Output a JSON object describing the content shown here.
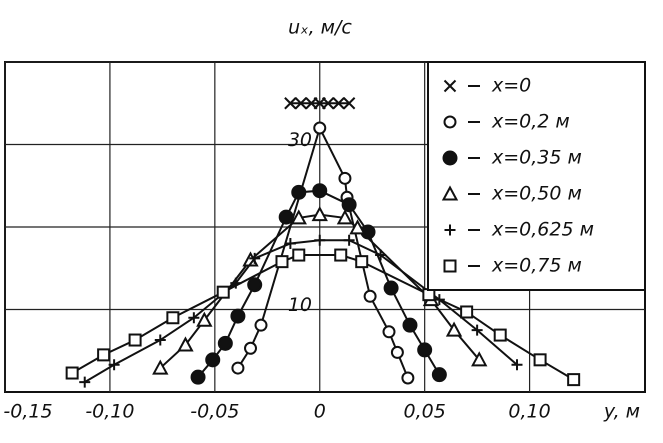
{
  "chart_data": {
    "type": "line",
    "y_label": "uₓ, м/с",
    "x_label": "y, м",
    "xlim": [
      -0.15,
      0.155
    ],
    "ylim": [
      0,
      40
    ],
    "xticks": [
      {
        "value": -0.15,
        "label": "-0,15"
      },
      {
        "value": -0.1,
        "label": "-0,10"
      },
      {
        "value": -0.05,
        "label": "-0,05"
      },
      0,
      {
        "value": 0.05,
        "label": "0,05"
      },
      {
        "value": 0.1,
        "label": "0,10"
      }
    ],
    "yticks": [
      10,
      30
    ],
    "ygrid": [
      10,
      20,
      30,
      40
    ],
    "grid": true,
    "legend": "upper right",
    "series": [
      {
        "name": "x=0",
        "marker": "x",
        "color": "#111111",
        "x": [
          -0.014,
          -0.009,
          -0.004,
          0,
          0.004,
          0.009,
          0.014
        ],
        "values": [
          35,
          35,
          35,
          35,
          35,
          35,
          35
        ]
      },
      {
        "name": "x=0,2 м",
        "marker": "circle",
        "color": "#111111",
        "x": [
          -0.039,
          -0.033,
          -0.028,
          0,
          0.012,
          0.013,
          0.024,
          0.033,
          0.037,
          0.042
        ],
        "values": [
          2.9,
          5.3,
          8.1,
          32,
          25.9,
          23.6,
          11.6,
          7.3,
          4.8,
          1.7
        ]
      },
      {
        "name": "x=0,35 м",
        "marker": "dot",
        "color": "#111111",
        "x": [
          -0.058,
          -0.051,
          -0.045,
          -0.039,
          -0.031,
          -0.016,
          -0.01,
          0,
          0.014,
          0.023,
          0.034,
          0.043,
          0.05,
          0.057
        ],
        "values": [
          1.8,
          3.9,
          5.9,
          9.2,
          13,
          21.2,
          24.2,
          24.4,
          22.7,
          19.4,
          12.6,
          8.1,
          5.1,
          2.1
        ]
      },
      {
        "name": "x=0,50 м",
        "marker": "triangle",
        "color": "#111111",
        "x": [
          -0.076,
          -0.064,
          -0.055,
          -0.033,
          -0.01,
          0,
          0.012,
          0.018,
          0.053,
          0.064,
          0.076
        ],
        "values": [
          2.9,
          5.7,
          8.7,
          16,
          21.1,
          21.5,
          21.1,
          19.9,
          11.2,
          7.5,
          3.9
        ]
      },
      {
        "name": "x=0,625 м",
        "marker": "plus",
        "color": "#111111",
        "x": [
          -0.112,
          -0.098,
          -0.076,
          -0.06,
          -0.04,
          -0.031,
          -0.014,
          0,
          0.014,
          0.029,
          0.057,
          0.075,
          0.094
        ],
        "values": [
          1.2,
          3.3,
          6.3,
          9,
          13.2,
          16.2,
          18,
          18.4,
          18.4,
          16.6,
          11.2,
          7.5,
          3.3
        ]
      },
      {
        "name": "x=0,75 м",
        "marker": "square",
        "color": "#111111",
        "x": [
          -0.118,
          -0.103,
          -0.088,
          -0.07,
          -0.046,
          -0.018,
          -0.01,
          0.01,
          0.02,
          0.052,
          0.07,
          0.086,
          0.105,
          0.121
        ],
        "values": [
          2.3,
          4.5,
          6.3,
          9,
          12.1,
          15.8,
          16.6,
          16.6,
          15.8,
          11.8,
          9.7,
          6.9,
          3.9,
          1.5
        ]
      }
    ]
  }
}
